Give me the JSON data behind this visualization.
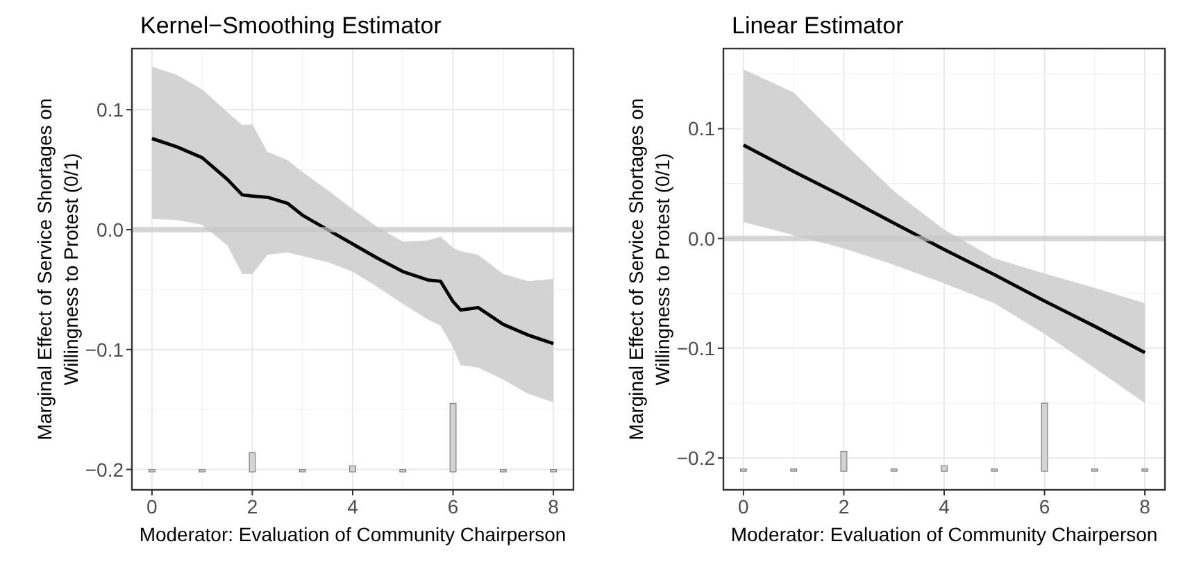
{
  "chart_data": [
    {
      "type": "line",
      "title": "Kernel−Smoothing Estimator",
      "xlabel": "Moderator: Evaluation of Community Chairperson",
      "ylabel": "Marginal Effect of Service Shortages on\nWillingness to Protest (0/1)",
      "xlim": [
        -0.4,
        8.4
      ],
      "ylim": [
        -0.217,
        0.151
      ],
      "xticks": [
        0,
        2,
        4,
        6,
        8
      ],
      "yticks": [
        {
          "value": -0.2,
          "label": "−0.2"
        },
        {
          "value": -0.1,
          "label": "−0.1"
        },
        {
          "value": 0,
          "label": "0.0"
        },
        0.1
      ],
      "grid": true,
      "ref_lines": [
        {
          "axis": "y",
          "value": 0,
          "color": "#c8c8c8"
        }
      ],
      "series": [
        {
          "color": "#000000",
          "x": [
            0,
            0.5,
            1,
            1.5,
            1.8,
            2,
            2.3,
            2.7,
            3,
            3.5,
            4,
            4.5,
            5,
            5.5,
            5.75,
            6,
            6.15,
            6.5,
            7,
            7.5,
            8
          ],
          "values": [
            0.076,
            0.069,
            0.06,
            0.042,
            0.029,
            0.028,
            0.027,
            0.022,
            0.012,
            0.0,
            -0.012,
            -0.024,
            -0.035,
            -0.042,
            -0.043,
            -0.06,
            -0.067,
            -0.065,
            -0.079,
            -0.088,
            -0.095
          ],
          "lower": [
            0.009,
            0.008,
            0.004,
            -0.013,
            -0.037,
            -0.037,
            -0.021,
            -0.019,
            -0.022,
            -0.027,
            -0.035,
            -0.048,
            -0.062,
            -0.075,
            -0.08,
            -0.098,
            -0.113,
            -0.115,
            -0.125,
            -0.137,
            -0.144
          ],
          "upper": [
            0.136,
            0.129,
            0.117,
            0.098,
            0.087,
            0.088,
            0.065,
            0.058,
            0.048,
            0.033,
            0.017,
            0.002,
            -0.01,
            -0.009,
            -0.006,
            -0.015,
            -0.018,
            -0.021,
            -0.037,
            -0.043,
            -0.041
          ]
        },
        {
          "type": "bar",
          "color": "#d3d3d3",
          "x": [
            0,
            1,
            2,
            3,
            4,
            5,
            6,
            7,
            8
          ],
          "values": [
            0.002,
            0.002,
            0.016,
            0.002,
            0.005,
            0.002,
            0.057,
            0.002,
            0.002
          ],
          "base": [
            -0.202,
            -0.202,
            -0.202,
            -0.202,
            -0.202,
            -0.202,
            -0.202,
            -0.202,
            -0.202
          ]
        }
      ]
    },
    {
      "type": "line",
      "title": "Linear Estimator",
      "xlabel": "Moderator: Evaluation of Community Chairperson",
      "ylabel": "Marginal Effect of Service Shortages on\nWillingness to Protest (0/1)",
      "xlim": [
        -0.4,
        8.4
      ],
      "ylim": [
        -0.229,
        0.173
      ],
      "xticks": [
        0,
        2,
        4,
        6,
        8
      ],
      "yticks": [
        {
          "value": -0.2,
          "label": "−0.2"
        },
        {
          "value": -0.1,
          "label": "−0.1"
        },
        {
          "value": 0,
          "label": "0.0"
        },
        0.1
      ],
      "grid": true,
      "ref_lines": [
        {
          "axis": "y",
          "value": 0,
          "color": "#c8c8c8"
        }
      ],
      "series": [
        {
          "color": "#000000",
          "x": [
            0,
            1,
            2,
            3,
            4,
            5,
            6,
            7,
            8
          ],
          "values": [
            0.085,
            0.061,
            0.038,
            0.014,
            -0.01,
            -0.033,
            -0.057,
            -0.08,
            -0.104
          ],
          "lower": [
            0.015,
            0.003,
            -0.009,
            -0.024,
            -0.041,
            -0.059,
            -0.087,
            -0.118,
            -0.15
          ],
          "upper": [
            0.154,
            0.133,
            0.087,
            0.043,
            0.008,
            -0.018,
            -0.032,
            -0.045,
            -0.059
          ]
        },
        {
          "type": "bar",
          "color": "#d3d3d3",
          "x": [
            0,
            1,
            2,
            3,
            4,
            5,
            6,
            7,
            8
          ],
          "values": [
            0.002,
            0.002,
            0.018,
            0.002,
            0.005,
            0.002,
            0.062,
            0.002,
            0.002
          ],
          "base": [
            -0.212,
            -0.212,
            -0.212,
            -0.212,
            -0.212,
            -0.212,
            -0.212,
            -0.212,
            -0.212
          ]
        }
      ]
    }
  ]
}
